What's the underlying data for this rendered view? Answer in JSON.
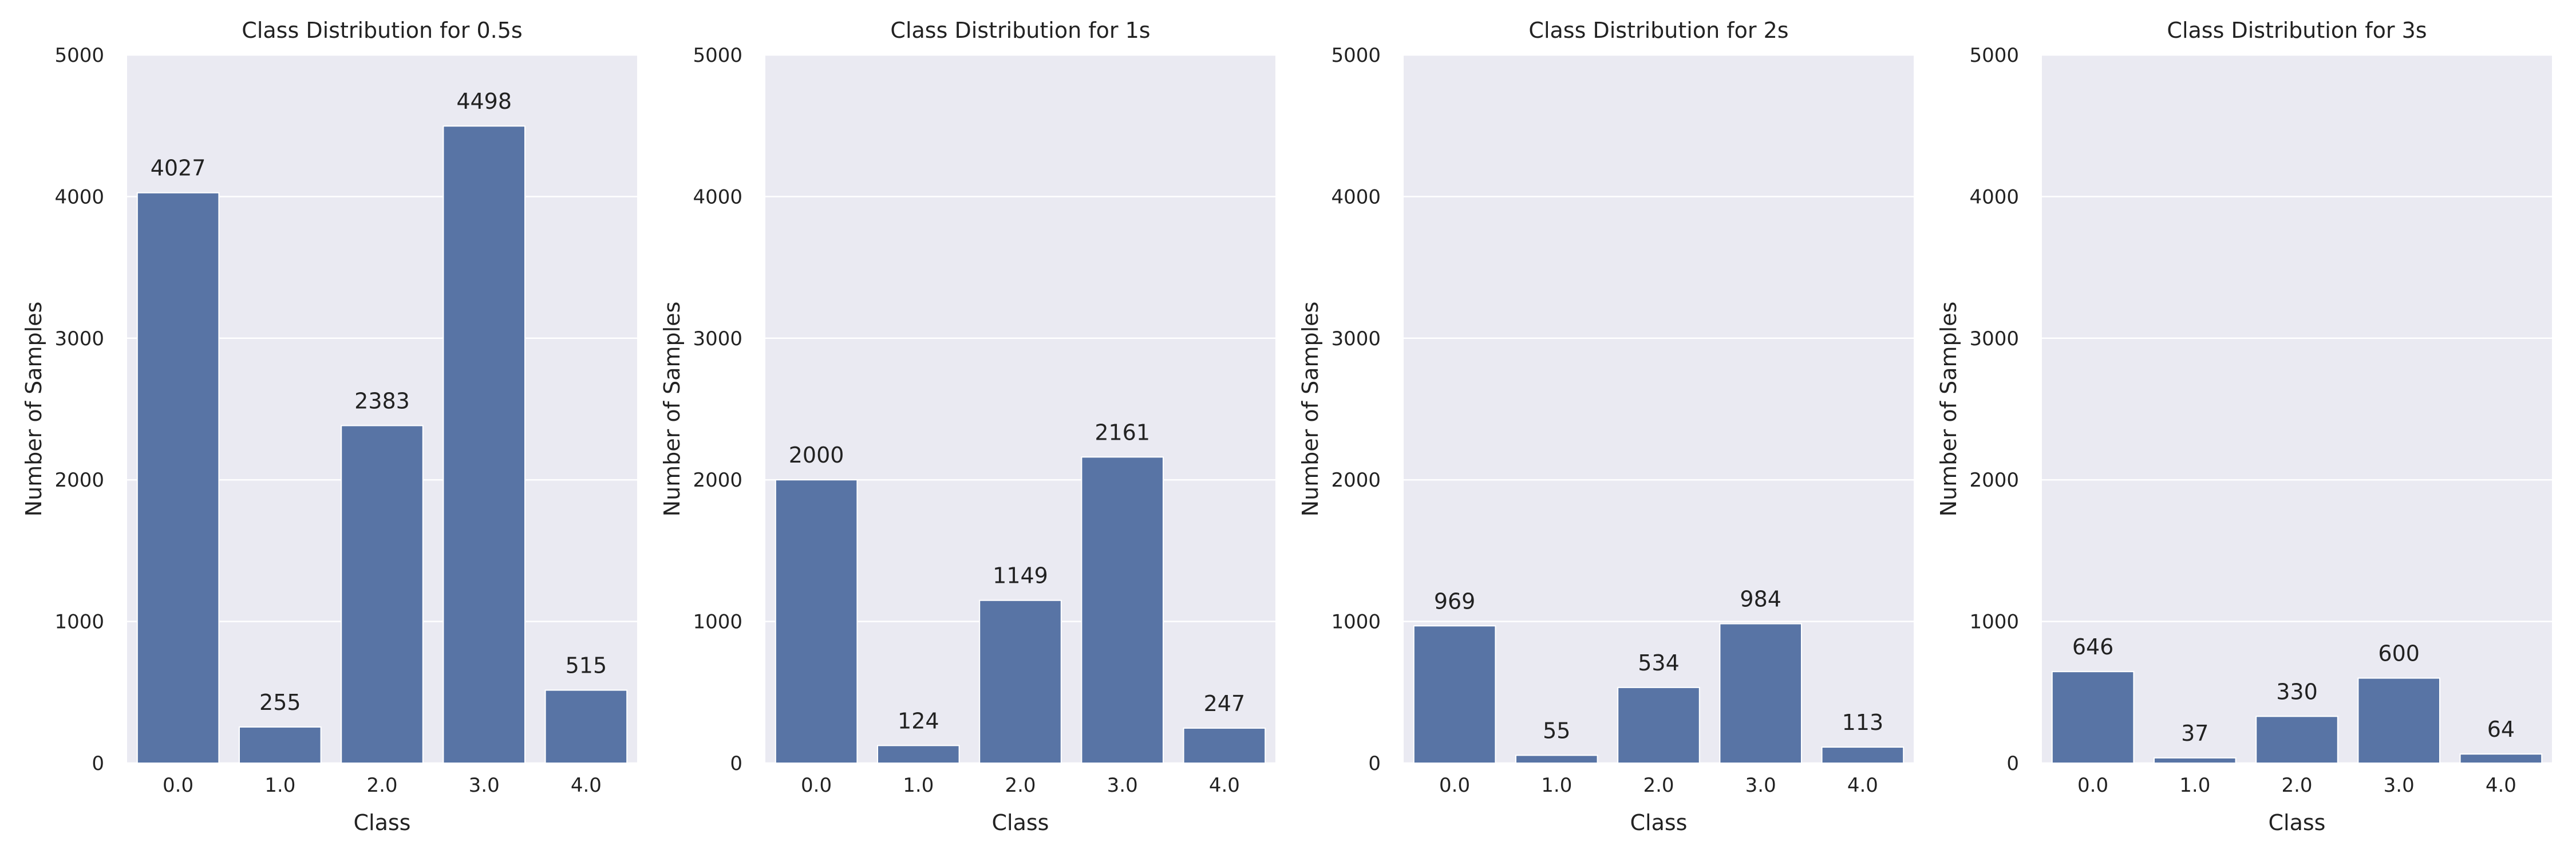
{
  "figure": {
    "plot_background": "#eaeaf2",
    "bar_color": "#5874a5",
    "grid_color": "#ffffff"
  },
  "chart_data": [
    {
      "type": "bar",
      "title": "Class Distribution for 0.5s",
      "xlabel": "Class",
      "ylabel": "Number of Samples",
      "categories": [
        "0.0",
        "1.0",
        "2.0",
        "3.0",
        "4.0"
      ],
      "values": [
        4027,
        255,
        2383,
        4498,
        515
      ],
      "ylim": [
        0,
        5000
      ],
      "yticks": [
        0,
        1000,
        2000,
        3000,
        4000,
        5000
      ],
      "grid": true,
      "data_labels": true
    },
    {
      "type": "bar",
      "title": "Class Distribution for 1s",
      "xlabel": "Class",
      "ylabel": "Number of Samples",
      "categories": [
        "0.0",
        "1.0",
        "2.0",
        "3.0",
        "4.0"
      ],
      "values": [
        2000,
        124,
        1149,
        2161,
        247
      ],
      "ylim": [
        0,
        5000
      ],
      "yticks": [
        0,
        1000,
        2000,
        3000,
        4000,
        5000
      ],
      "grid": true,
      "data_labels": true
    },
    {
      "type": "bar",
      "title": "Class Distribution for 2s",
      "xlabel": "Class",
      "ylabel": "Number of Samples",
      "categories": [
        "0.0",
        "1.0",
        "2.0",
        "3.0",
        "4.0"
      ],
      "values": [
        969,
        55,
        534,
        984,
        113
      ],
      "ylim": [
        0,
        5000
      ],
      "yticks": [
        0,
        1000,
        2000,
        3000,
        4000,
        5000
      ],
      "grid": true,
      "data_labels": true
    },
    {
      "type": "bar",
      "title": "Class Distribution for 3s",
      "xlabel": "Class",
      "ylabel": "Number of Samples",
      "categories": [
        "0.0",
        "1.0",
        "2.0",
        "3.0",
        "4.0"
      ],
      "values": [
        646,
        37,
        330,
        600,
        64
      ],
      "ylim": [
        0,
        5000
      ],
      "yticks": [
        0,
        1000,
        2000,
        3000,
        4000,
        5000
      ],
      "grid": true,
      "data_labels": true
    }
  ]
}
